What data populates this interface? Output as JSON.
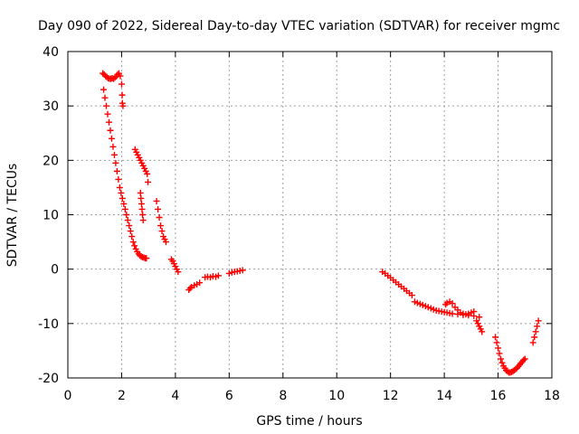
{
  "chart_data": {
    "type": "scatter",
    "title": "Day 090 of 2022, Sidereal Day-to-day VTEC variation (SDTVAR) for receiver mgmc",
    "xlabel": "GPS time / hours",
    "ylabel": "SDTVAR / TECUs",
    "xlim": [
      0,
      18
    ],
    "ylim": [
      -20,
      40
    ],
    "xticks": [
      0,
      2,
      4,
      6,
      8,
      10,
      12,
      14,
      16,
      18
    ],
    "yticks": [
      -20,
      -10,
      0,
      10,
      20,
      30,
      40
    ],
    "xtick_labels": [
      "0",
      "2",
      "4",
      "6",
      "8",
      "10",
      "12",
      "14",
      "16",
      "18"
    ],
    "ytick_labels": [
      "-20",
      "-10",
      "0",
      "10",
      "20",
      "30",
      "40"
    ],
    "grid": true,
    "marker": "+",
    "marker_color": "#ff0000",
    "series": [
      {
        "name": "SDTVAR",
        "x": [
          1.3,
          1.35,
          1.4,
          1.45,
          1.5,
          1.55,
          1.6,
          1.65,
          1.7,
          1.75,
          1.8,
          1.85,
          1.9,
          1.95,
          2.0,
          2.02,
          2.03,
          2.05,
          1.33,
          1.38,
          1.43,
          1.48,
          1.53,
          1.58,
          1.63,
          1.68,
          1.73,
          1.78,
          1.83,
          1.88,
          1.93,
          1.98,
          2.03,
          2.08,
          2.13,
          2.18,
          2.23,
          2.28,
          2.33,
          2.38,
          2.43,
          2.48,
          2.53,
          2.58,
          2.63,
          2.68,
          2.73,
          2.78,
          2.83,
          2.88,
          2.92,
          2.5,
          2.55,
          2.6,
          2.65,
          2.7,
          2.75,
          2.8,
          2.85,
          2.9,
          2.95,
          2.98,
          2.7,
          2.72,
          2.74,
          2.76,
          2.78,
          2.8,
          3.3,
          3.35,
          3.4,
          3.45,
          3.5,
          3.55,
          3.6,
          3.65,
          3.85,
          3.9,
          3.95,
          4.0,
          4.05,
          4.1,
          4.5,
          4.55,
          4.6,
          4.7,
          4.8,
          4.9,
          5.1,
          5.2,
          5.3,
          5.4,
          5.5,
          5.6,
          6.0,
          6.1,
          6.2,
          6.3,
          6.4,
          6.5,
          11.7,
          11.8,
          11.9,
          12.0,
          12.1,
          12.2,
          12.3,
          12.4,
          12.5,
          12.6,
          12.7,
          12.8,
          12.9,
          13.0,
          13.1,
          13.2,
          13.3,
          13.4,
          13.5,
          13.6,
          13.7,
          13.8,
          13.9,
          14.0,
          14.05,
          14.1,
          14.2,
          14.3,
          14.4,
          14.5,
          14.6,
          14.7,
          14.8,
          14.9,
          15.0,
          15.1,
          14.1,
          14.2,
          14.3,
          14.5,
          14.7,
          14.9,
          15.1,
          15.3,
          15.2,
          15.25,
          15.3,
          15.35,
          15.4,
          15.9,
          15.95,
          16.0,
          16.05,
          16.1,
          16.15,
          16.2,
          16.25,
          16.3,
          16.35,
          16.4,
          16.45,
          16.5,
          16.55,
          16.6,
          16.65,
          16.7,
          16.75,
          16.8,
          16.85,
          16.9,
          16.95,
          17.0,
          17.3,
          17.35,
          17.4,
          17.45,
          17.5
        ],
        "y": [
          36,
          35.8,
          35.5,
          35.3,
          35.1,
          35.0,
          35.0,
          35.1,
          35.0,
          35.2,
          35.4,
          35.8,
          36.0,
          35.5,
          34.0,
          32.0,
          30.5,
          30.0,
          33,
          31.5,
          30,
          28.5,
          27,
          25.5,
          24,
          22.5,
          21,
          19.5,
          18,
          16.5,
          15,
          14,
          13,
          12,
          11,
          10,
          9,
          8,
          7,
          6,
          5,
          4.3,
          3.7,
          3.2,
          2.8,
          2.5,
          2.3,
          2.2,
          2.1,
          2.0,
          2.0,
          22,
          21.5,
          21,
          20.5,
          20,
          19.5,
          19,
          18.5,
          18,
          17.5,
          16,
          14,
          13,
          12,
          11,
          10,
          9,
          12.5,
          11,
          9.5,
          8,
          7,
          6,
          5.5,
          5,
          1.8,
          1.5,
          1.0,
          0.5,
          0,
          -0.5,
          -3.8,
          -3.5,
          -3.3,
          -3.0,
          -2.8,
          -2.5,
          -1.5,
          -1.4,
          -1.5,
          -1.3,
          -1.4,
          -1.2,
          -0.8,
          -0.6,
          -0.5,
          -0.4,
          -0.3,
          -0.2,
          -0.5,
          -0.8,
          -1.2,
          -1.6,
          -2.0,
          -2.4,
          -2.8,
          -3.2,
          -3.6,
          -4.0,
          -4.4,
          -4.8,
          -6.0,
          -6.2,
          -6.4,
          -6.6,
          -6.8,
          -7.0,
          -7.2,
          -7.4,
          -7.6,
          -7.7,
          -7.8,
          -7.9,
          -6.5,
          -6.2,
          -6.0,
          -6.3,
          -7.0,
          -7.5,
          -8.0,
          -8.2,
          -8.3,
          -8.2,
          -8.0,
          -7.8,
          -8.0,
          -8.1,
          -8.2,
          -8.3,
          -8.4,
          -8.5,
          -8.6,
          -8.8,
          -9.5,
          -10.0,
          -10.5,
          -11.0,
          -11.5,
          -12.5,
          -13.5,
          -14.5,
          -15.5,
          -16.5,
          -17.2,
          -17.8,
          -18.2,
          -18.6,
          -18.8,
          -19.0,
          -19.0,
          -18.9,
          -18.8,
          -18.6,
          -18.4,
          -18.2,
          -17.9,
          -17.6,
          -17.3,
          -17.0,
          -16.7,
          -16.5,
          -13.5,
          -12.5,
          -11.5,
          -10.5,
          -9.5
        ]
      }
    ]
  }
}
